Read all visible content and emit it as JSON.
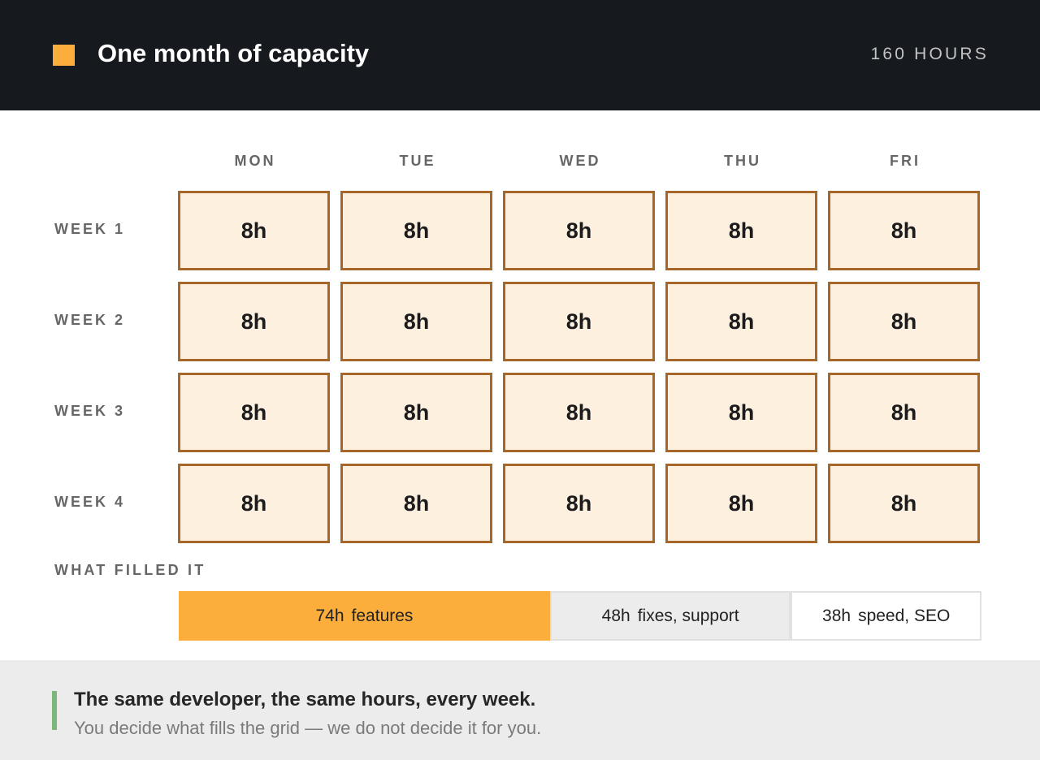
{
  "header": {
    "title": "One month of capacity",
    "total": "160 HOURS",
    "accent_color": "#fbae3c"
  },
  "grid": {
    "days": [
      "MON",
      "TUE",
      "WED",
      "THU",
      "FRI"
    ],
    "weeks": [
      {
        "label": "WEEK 1",
        "hours": [
          "8h",
          "8h",
          "8h",
          "8h",
          "8h"
        ]
      },
      {
        "label": "WEEK 2",
        "hours": [
          "8h",
          "8h",
          "8h",
          "8h",
          "8h"
        ]
      },
      {
        "label": "WEEK 3",
        "hours": [
          "8h",
          "8h",
          "8h",
          "8h",
          "8h"
        ]
      },
      {
        "label": "WEEK 4",
        "hours": [
          "8h",
          "8h",
          "8h",
          "8h",
          "8h"
        ]
      }
    ],
    "cell_color": "#fdf0df",
    "cell_border_color": "#a8672a"
  },
  "allocation": {
    "title": "WHAT FILLED IT",
    "segments": [
      {
        "hours": "74h",
        "label": "features",
        "value": 74,
        "color": "#fbae3c"
      },
      {
        "hours": "48h",
        "label": "fixes, support",
        "value": 48,
        "color": "#ececec"
      },
      {
        "hours": "38h",
        "label": "speed, SEO",
        "value": 38,
        "color": "#ffffff"
      }
    ]
  },
  "footer": {
    "headline": "The same developer, the same hours, every week.",
    "subtext": "You decide what fills the grid — we do not decide it for you.",
    "accent_color": "#7cb87c"
  }
}
